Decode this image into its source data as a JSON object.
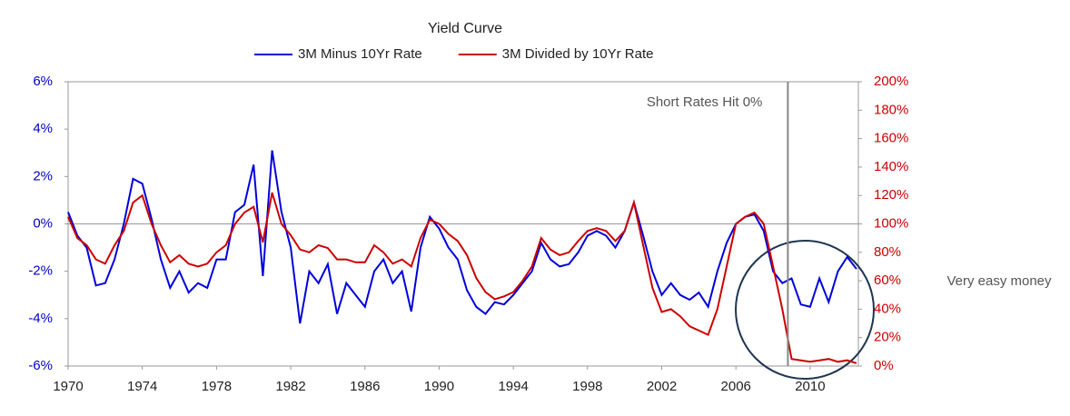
{
  "chart_data": {
    "type": "line",
    "title": "Yield Curve",
    "x": [
      1970,
      1970.5,
      1971,
      1971.5,
      1972,
      1972.5,
      1973,
      1973.5,
      1974,
      1974.5,
      1975,
      1975.5,
      1976,
      1976.5,
      1977,
      1977.5,
      1978,
      1978.5,
      1979,
      1979.5,
      1980,
      1980.5,
      1981,
      1981.5,
      1982,
      1982.5,
      1983,
      1983.5,
      1984,
      1984.5,
      1985,
      1985.5,
      1986,
      1986.5,
      1987,
      1987.5,
      1988,
      1988.5,
      1989,
      1989.5,
      1990,
      1990.5,
      1991,
      1991.5,
      1992,
      1992.5,
      1993,
      1993.5,
      1994,
      1994.5,
      1995,
      1995.5,
      1996,
      1996.5,
      1997,
      1997.5,
      1998,
      1998.5,
      1999,
      1999.5,
      2000,
      2000.5,
      2001,
      2001.5,
      2002,
      2002.5,
      2003,
      2003.5,
      2004,
      2004.5,
      2005,
      2005.5,
      2006,
      2006.5,
      2007,
      2007.5,
      2008,
      2008.5,
      2009,
      2009.5,
      2010,
      2010.5,
      2011,
      2011.5,
      2012,
      2012.5
    ],
    "series": [
      {
        "name": "3M Minus 10Yr Rate",
        "color": "#0000dd",
        "axis": "y",
        "values": [
          0.5,
          -0.5,
          -1.0,
          -2.6,
          -2.5,
          -1.5,
          0.0,
          1.9,
          1.7,
          0.2,
          -1.5,
          -2.7,
          -2.0,
          -2.9,
          -2.5,
          -2.7,
          -1.5,
          -1.5,
          0.5,
          0.8,
          2.5,
          -2.2,
          3.1,
          0.5,
          -1.0,
          -4.2,
          -2.0,
          -2.5,
          -1.7,
          -3.8,
          -2.5,
          -3.0,
          -3.5,
          -2.0,
          -1.5,
          -2.5,
          -2.0,
          -3.7,
          -1.0,
          0.3,
          -0.2,
          -1.0,
          -1.5,
          -2.8,
          -3.5,
          -3.8,
          -3.3,
          -3.4,
          -3.0,
          -2.5,
          -2.0,
          -0.8,
          -1.5,
          -1.8,
          -1.7,
          -1.2,
          -0.5,
          -0.3,
          -0.5,
          -1.0,
          -0.3,
          0.9,
          -0.5,
          -2.0,
          -3.0,
          -2.5,
          -3.0,
          -3.2,
          -2.9,
          -3.5,
          -2.0,
          -0.8,
          0.0,
          0.3,
          0.4,
          -0.3,
          -2.0,
          -2.5,
          -2.3,
          -3.4,
          -3.5,
          -2.3,
          -3.3,
          -2.0,
          -1.4,
          -1.9
        ]
      },
      {
        "name": "3M Divided by 10Yr Rate",
        "color": "#cc0000",
        "axis": "y2",
        "values": [
          105,
          90,
          85,
          75,
          72,
          85,
          95,
          115,
          120,
          100,
          85,
          73,
          78,
          72,
          70,
          72,
          80,
          85,
          100,
          108,
          112,
          87,
          122,
          100,
          92,
          82,
          80,
          85,
          83,
          75,
          75,
          73,
          73,
          85,
          80,
          72,
          75,
          70,
          90,
          103,
          100,
          93,
          88,
          78,
          62,
          52,
          47,
          49,
          52,
          60,
          70,
          90,
          82,
          78,
          80,
          88,
          95,
          97,
          95,
          88,
          95,
          115,
          85,
          55,
          38,
          40,
          35,
          28,
          25,
          22,
          40,
          70,
          100,
          105,
          108,
          100,
          70,
          40,
          5,
          4,
          3,
          4,
          5,
          3,
          4,
          2
        ]
      }
    ],
    "xlim": [
      1970,
      2012.6
    ],
    "xticks": [
      1970,
      1974,
      1978,
      1982,
      1986,
      1990,
      1994,
      1998,
      2002,
      2006,
      2010
    ],
    "ylim": [
      -6,
      6
    ],
    "yticks": [
      {
        "value": -6,
        "label": "-6%"
      },
      {
        "value": -4,
        "label": "-4%"
      },
      {
        "value": -2,
        "label": "-2%"
      },
      {
        "value": 0,
        "label": "0%"
      },
      {
        "value": 2,
        "label": "2%"
      },
      {
        "value": 4,
        "label": "4%"
      },
      {
        "value": 6,
        "label": "6%"
      }
    ],
    "y2lim": [
      0,
      200
    ],
    "y2ticks": [
      {
        "value": 0,
        "label": "0%"
      },
      {
        "value": 20,
        "label": "20%"
      },
      {
        "value": 40,
        "label": "40%"
      },
      {
        "value": 60,
        "label": "60%"
      },
      {
        "value": 80,
        "label": "80%"
      },
      {
        "value": 100,
        "label": "100%"
      },
      {
        "value": 120,
        "label": "120%"
      },
      {
        "value": 140,
        "label": "140%"
      },
      {
        "value": 160,
        "label": "160%"
      },
      {
        "value": 180,
        "label": "180%"
      },
      {
        "value": 200,
        "label": "200%"
      }
    ],
    "legend": "top",
    "annotations": [
      {
        "text": "Short Rates Hit 0%",
        "x": 2008.8
      },
      {
        "text": "Very easy money"
      }
    ]
  }
}
